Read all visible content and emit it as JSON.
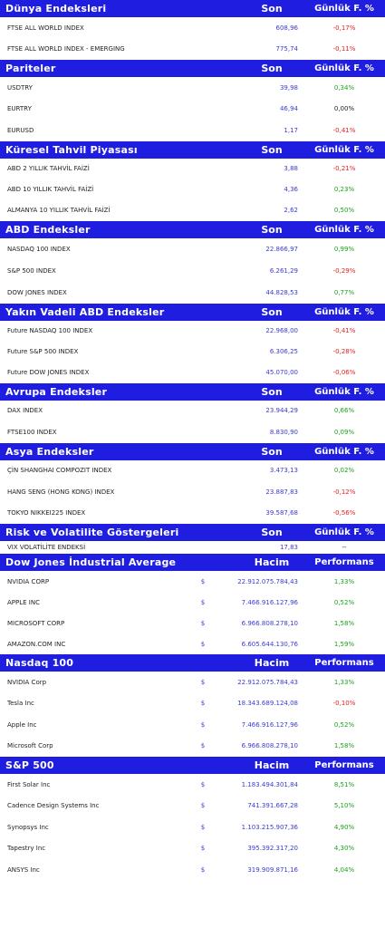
{
  "sections": [
    {
      "title": "Dünya Endeksleri",
      "col2": "Son",
      "col3": "Günlük F. %",
      "row_h": 23.5,
      "rows": [
        {
          "name": "FTSE ALL WORLD INDEX",
          "value": "608,96",
          "change": "-0,17%",
          "dir": "neg"
        },
        {
          "name": "FTSE ALL WORLD INDEX - EMERGING",
          "value": "775,74",
          "change": "-0,11%",
          "dir": "neg"
        }
      ]
    },
    {
      "title": "Pariteler",
      "col2": "Son",
      "col3": "Günlük F. %",
      "row_h": 23.5,
      "rows": [
        {
          "name": "USDTRY",
          "value": "39,98",
          "change": "0,34%",
          "dir": "pos"
        },
        {
          "name": "EURTRY",
          "value": "46,94",
          "change": "0,00%",
          "dir": "neu"
        },
        {
          "name": "EURUSD",
          "value": "1,17",
          "change": "-0,41%",
          "dir": "neg"
        }
      ]
    },
    {
      "title": "Küresel Tahvil Piyasası",
      "col2": "Son",
      "col3": "Günlük F. %",
      "row_h": 23,
      "rows": [
        {
          "name": "ABD 2 YILLIK TAHVİL FAİZİ",
          "value": "3,88",
          "change": "-0,21%",
          "dir": "neg"
        },
        {
          "name": "ABD 10 YILLIK TAHVİL FAİZİ",
          "value": "4,36",
          "change": "0,23%",
          "dir": "pos"
        },
        {
          "name": "ALMANYA 10 YILLIK TAHVİL FAİZİ",
          "value": "2,62",
          "change": "0,50%",
          "dir": "pos"
        }
      ]
    },
    {
      "title": "ABD Endeksler",
      "col2": "Son",
      "col3": "Günlük F. %",
      "row_h": 24,
      "rows": [
        {
          "name": "NASDAQ 100 INDEX",
          "value": "22.866,97",
          "change": "0,99%",
          "dir": "pos"
        },
        {
          "name": "S&P 500 INDEX",
          "value": "6.261,29",
          "change": "-0,29%",
          "dir": "neg"
        },
        {
          "name": "DOW JONES INDEX",
          "value": "44.828,53",
          "change": "0,77%",
          "dir": "pos"
        }
      ]
    },
    {
      "title": "Yakın Vadeli ABD Endeksler",
      "col2": "Son",
      "col3": "Günlük F. %",
      "row_h": 23,
      "rows": [
        {
          "name": "Future NASDAQ 100 INDEX",
          "value": "22.968,00",
          "change": "-0,41%",
          "dir": "neg"
        },
        {
          "name": "Future S&P 500 INDEX",
          "value": "6.306,25",
          "change": "-0,28%",
          "dir": "neg"
        },
        {
          "name": "Future DOW JONES INDEX",
          "value": "45.070,00",
          "change": "-0,06%",
          "dir": "neg"
        }
      ]
    },
    {
      "title": "Avrupa Endeksler",
      "col2": "Son",
      "col3": "Günlük F. %",
      "row_h": 23.5,
      "rows": [
        {
          "name": "DAX INDEX",
          "value": "23.944,29",
          "change": "0,66%",
          "dir": "pos"
        },
        {
          "name": "FTSE100 INDEX",
          "value": "8.830,90",
          "change": "0,09%",
          "dir": "pos"
        }
      ]
    },
    {
      "title": "Asya Endeksler",
      "col2": "Son",
      "col3": "Günlük F. %",
      "row_h": 23.5,
      "rows": [
        {
          "name": "ÇİN SHANGHAI COMPOZIT INDEX",
          "value": "3.473,13",
          "change": "0,02%",
          "dir": "pos"
        },
        {
          "name": "HANG SENG (HONG KONG) INDEX",
          "value": "23.887,83",
          "change": "-0,12%",
          "dir": "neg"
        },
        {
          "name": "TOKYO NIKKEI225 INDEX",
          "value": "39.587,68",
          "change": "-0,56%",
          "dir": "neg"
        }
      ]
    },
    {
      "title": "Risk ve Volatilite Göstergeleri",
      "col2": "Son",
      "col3": "Günlük F. %",
      "row_h": 14,
      "rows": [
        {
          "name": "VIX VOLATİLİTE ENDEKSİ",
          "value": "17,83",
          "change": "--",
          "dir": "neu"
        }
      ]
    },
    {
      "title": "Dow Jones İndustrial Average",
      "col2": "Hacim",
      "col3": "Performans",
      "row_h": 23,
      "vol": true,
      "rows": [
        {
          "name": "NVIDIA CORP",
          "dollar": "$",
          "value": "22.912.075.784,43",
          "change": "1,33%",
          "dir": "pos"
        },
        {
          "name": "APPLE INC",
          "dollar": "$",
          "value": "7.466.916.127,96",
          "change": "0,52%",
          "dir": "pos"
        },
        {
          "name": "MICROSOFT CORP",
          "dollar": "$",
          "value": "6.966.808.278,10",
          "change": "1,58%",
          "dir": "pos"
        },
        {
          "name": "AMAZON.COM INC",
          "dollar": "$",
          "value": "6.605.644.130,76",
          "change": "1,59%",
          "dir": "pos"
        }
      ]
    },
    {
      "title": "Nasdaq 100",
      "col2": "Hacim",
      "col3": "Performans",
      "row_h": 23.5,
      "vol": true,
      "rows": [
        {
          "name": "NVIDIA Corp",
          "dollar": "$",
          "value": "22.912.075.784,43",
          "change": "1,33%",
          "dir": "pos"
        },
        {
          "name": "Tesla Inc",
          "dollar": "$",
          "value": "18.343.689.124,08",
          "change": "-0,10%",
          "dir": "neg"
        },
        {
          "name": "Apple Inc",
          "dollar": "$",
          "value": "7.466.916.127,96",
          "change": "0,52%",
          "dir": "pos"
        },
        {
          "name": "Microsoft Corp",
          "dollar": "$",
          "value": "6.966.808.278,10",
          "change": "1,58%",
          "dir": "pos"
        }
      ]
    },
    {
      "title": "S&P 500",
      "col2": "Hacim",
      "col3": "Performans",
      "row_h": 23.5,
      "vol": true,
      "rows": [
        {
          "name": "First Solar Inc",
          "dollar": "$",
          "value": "1.183.494.301,84",
          "change": "8,51%",
          "dir": "pos"
        },
        {
          "name": "Cadence Design Systems Inc",
          "dollar": "$",
          "value": "741.391.667,28",
          "change": "5,10%",
          "dir": "pos"
        },
        {
          "name": "Synopsys Inc",
          "dollar": "$",
          "value": "1.103.215.907,36",
          "change": "4,90%",
          "dir": "pos"
        },
        {
          "name": "Tapestry Inc",
          "dollar": "$",
          "value": "395.392.317,20",
          "change": "4,30%",
          "dir": "pos"
        },
        {
          "name": "ANSYS Inc",
          "dollar": "$",
          "value": "319.909.871,16",
          "change": "4,04%",
          "dir": "pos"
        }
      ]
    }
  ]
}
